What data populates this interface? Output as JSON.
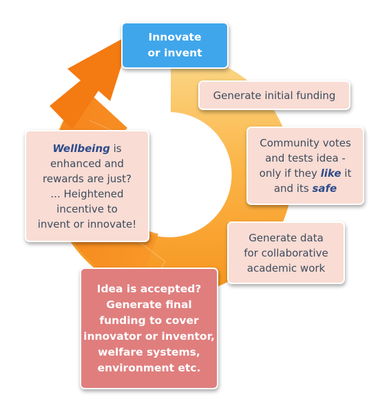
{
  "colors": {
    "arrow_orange": "#f78a1e",
    "arrow_light": "#fbd37c",
    "innovate_blue": "#3fa6ec",
    "pale_box": "#f9dcd4",
    "accepted_red": "#e07e7e",
    "body_text": "#3d4b5c",
    "highlight_text": "#2d4c8a"
  },
  "shapes": {
    "cycle_arrow": "circular-arrow",
    "arrow_head": "arrow-head-pointing-up-right"
  },
  "steps": {
    "innovate": {
      "text": "Innovate\nor invent"
    },
    "initial_funding": {
      "text": "Generate initial funding"
    },
    "community": {
      "line1": "Community votes",
      "line2": "and tests idea -",
      "line3_pre": "only if they ",
      "line3_em": "like",
      "line3_post": " it",
      "line4_pre": "and its ",
      "line4_em": "safe"
    },
    "data": {
      "text": "Generate data\nfor collaborative\nacademic work"
    },
    "wellbeing": {
      "em": "Wellbeing",
      "after_em": " is",
      "rest": "enhanced and\nrewards are just?\n... Heightened\nincentive to\ninvent or innovate!"
    },
    "accepted": {
      "text": "Idea is accepted?\nGenerate final\nfunding to cover\ninnovator or inventor,\nwelfare systems,\nenvironment etc."
    }
  }
}
